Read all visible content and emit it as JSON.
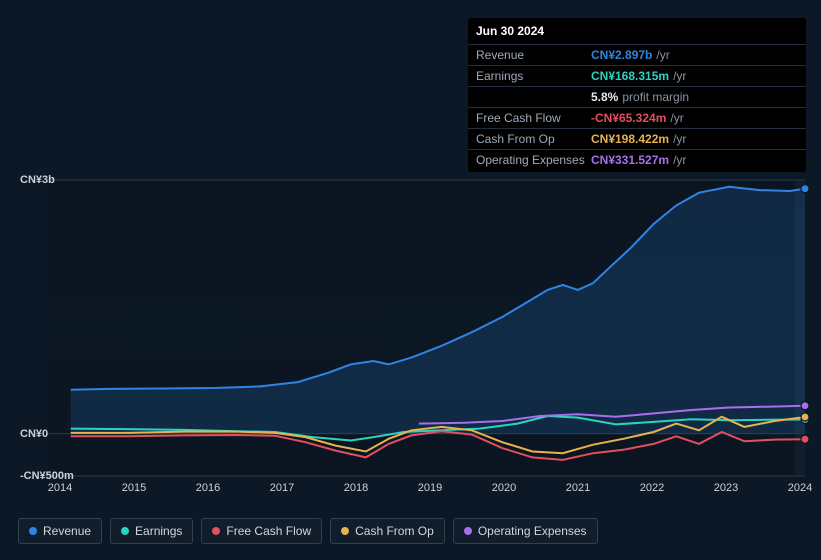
{
  "tooltip": {
    "date": "Jun 30 2024",
    "rows": [
      {
        "label": "Revenue",
        "value": "CN¥2.897b",
        "unit": "/yr",
        "color": "#2f84e4"
      },
      {
        "label": "Earnings",
        "value": "CN¥168.315m",
        "unit": "/yr",
        "color": "#2bd4c0"
      },
      {
        "label": "",
        "value": "5.8%",
        "unit": "profit margin",
        "color": "#e6e9ec"
      },
      {
        "label": "Free Cash Flow",
        "value": "-CN¥65.324m",
        "unit": "/yr",
        "color": "#e44e61"
      },
      {
        "label": "Cash From Op",
        "value": "CN¥198.422m",
        "unit": "/yr",
        "color": "#e6b34e"
      },
      {
        "label": "Operating Expenses",
        "value": "CN¥331.527m",
        "unit": "/yr",
        "color": "#a670ea"
      }
    ]
  },
  "chart": {
    "type": "line-area",
    "background": "#0d1826",
    "x_years": [
      "2014",
      "2015",
      "2016",
      "2017",
      "2018",
      "2019",
      "2020",
      "2021",
      "2022",
      "2023",
      "2024"
    ],
    "y_ticks": [
      {
        "label": "CN¥3b",
        "norm": 1.0
      },
      {
        "label": "CN¥0",
        "norm": 0.1429
      },
      {
        "label": "-CN¥500m",
        "norm": 0.0
      }
    ],
    "y_min_m": -500,
    "y_max_m": 3000,
    "series": [
      {
        "name": "Revenue",
        "color": "#2f84e4",
        "area": true,
        "points": [
          [
            0.03,
            520
          ],
          [
            0.08,
            530
          ],
          [
            0.15,
            535
          ],
          [
            0.22,
            540
          ],
          [
            0.28,
            560
          ],
          [
            0.33,
            610
          ],
          [
            0.37,
            720
          ],
          [
            0.4,
            820
          ],
          [
            0.43,
            860
          ],
          [
            0.45,
            820
          ],
          [
            0.48,
            900
          ],
          [
            0.52,
            1040
          ],
          [
            0.56,
            1200
          ],
          [
            0.6,
            1380
          ],
          [
            0.63,
            1540
          ],
          [
            0.66,
            1700
          ],
          [
            0.68,
            1760
          ],
          [
            0.7,
            1700
          ],
          [
            0.72,
            1780
          ],
          [
            0.74,
            1950
          ],
          [
            0.77,
            2200
          ],
          [
            0.8,
            2480
          ],
          [
            0.83,
            2700
          ],
          [
            0.86,
            2850
          ],
          [
            0.9,
            2920
          ],
          [
            0.94,
            2880
          ],
          [
            0.98,
            2870
          ],
          [
            1.0,
            2897
          ]
        ]
      },
      {
        "name": "Earnings",
        "color": "#2bd4c0",
        "area": false,
        "points": [
          [
            0.03,
            60
          ],
          [
            0.1,
            55
          ],
          [
            0.18,
            45
          ],
          [
            0.25,
            30
          ],
          [
            0.3,
            20
          ],
          [
            0.35,
            -40
          ],
          [
            0.4,
            -80
          ],
          [
            0.43,
            -40
          ],
          [
            0.47,
            20
          ],
          [
            0.52,
            40
          ],
          [
            0.57,
            60
          ],
          [
            0.62,
            120
          ],
          [
            0.66,
            210
          ],
          [
            0.7,
            190
          ],
          [
            0.75,
            110
          ],
          [
            0.8,
            140
          ],
          [
            0.85,
            170
          ],
          [
            0.9,
            160
          ],
          [
            0.95,
            165
          ],
          [
            1.0,
            168
          ]
        ]
      },
      {
        "name": "Free Cash Flow",
        "color": "#e44e61",
        "area": false,
        "points": [
          [
            0.03,
            -30
          ],
          [
            0.1,
            -30
          ],
          [
            0.18,
            -20
          ],
          [
            0.25,
            -15
          ],
          [
            0.3,
            -25
          ],
          [
            0.34,
            -100
          ],
          [
            0.38,
            -200
          ],
          [
            0.42,
            -280
          ],
          [
            0.45,
            -120
          ],
          [
            0.48,
            -20
          ],
          [
            0.52,
            30
          ],
          [
            0.56,
            -10
          ],
          [
            0.6,
            -170
          ],
          [
            0.64,
            -280
          ],
          [
            0.68,
            -310
          ],
          [
            0.72,
            -230
          ],
          [
            0.76,
            -190
          ],
          [
            0.8,
            -120
          ],
          [
            0.83,
            -30
          ],
          [
            0.86,
            -120
          ],
          [
            0.89,
            20
          ],
          [
            0.92,
            -90
          ],
          [
            0.96,
            -70
          ],
          [
            1.0,
            -65
          ]
        ]
      },
      {
        "name": "Cash From Op",
        "color": "#e6b34e",
        "area": false,
        "points": [
          [
            0.03,
            10
          ],
          [
            0.1,
            10
          ],
          [
            0.18,
            25
          ],
          [
            0.25,
            25
          ],
          [
            0.3,
            10
          ],
          [
            0.34,
            -40
          ],
          [
            0.38,
            -140
          ],
          [
            0.42,
            -210
          ],
          [
            0.45,
            -60
          ],
          [
            0.48,
            40
          ],
          [
            0.52,
            80
          ],
          [
            0.56,
            40
          ],
          [
            0.6,
            -100
          ],
          [
            0.64,
            -210
          ],
          [
            0.68,
            -230
          ],
          [
            0.72,
            -130
          ],
          [
            0.76,
            -60
          ],
          [
            0.8,
            20
          ],
          [
            0.83,
            120
          ],
          [
            0.86,
            40
          ],
          [
            0.89,
            200
          ],
          [
            0.92,
            80
          ],
          [
            0.96,
            150
          ],
          [
            1.0,
            198
          ]
        ]
      },
      {
        "name": "Operating Expenses",
        "color": "#a670ea",
        "area": false,
        "points": [
          [
            0.49,
            120
          ],
          [
            0.55,
            130
          ],
          [
            0.6,
            150
          ],
          [
            0.65,
            210
          ],
          [
            0.7,
            230
          ],
          [
            0.75,
            200
          ],
          [
            0.8,
            240
          ],
          [
            0.85,
            280
          ],
          [
            0.9,
            310
          ],
          [
            0.95,
            320
          ],
          [
            1.0,
            331
          ]
        ]
      }
    ],
    "cursor_x": 1.0
  },
  "legend": [
    {
      "label": "Revenue",
      "color": "#2f84e4"
    },
    {
      "label": "Earnings",
      "color": "#2bd4c0"
    },
    {
      "label": "Free Cash Flow",
      "color": "#e44e61"
    },
    {
      "label": "Cash From Op",
      "color": "#e6b34e"
    },
    {
      "label": "Operating Expenses",
      "color": "#a670ea"
    }
  ]
}
